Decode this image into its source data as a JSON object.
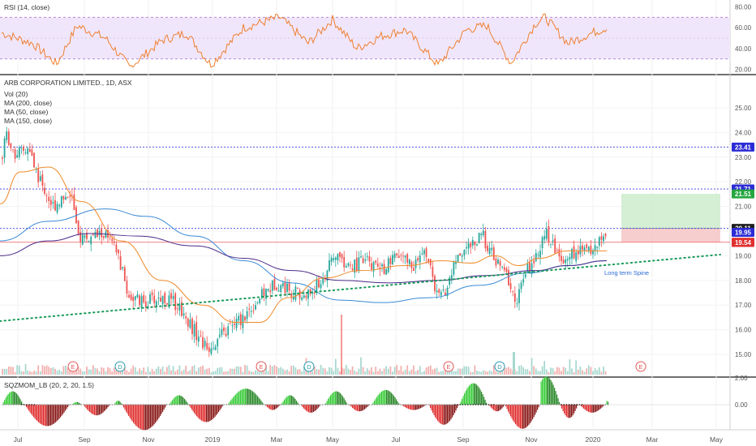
{
  "rsi_panel": {
    "title": "RSI (14, close)",
    "axis_ticks": [
      "80.00",
      "60.00",
      "40.00",
      "20.00"
    ],
    "axis_values": [
      80,
      60,
      40,
      20
    ],
    "band": [
      30,
      70
    ],
    "colors": {
      "line": "#f08030",
      "band": "#f0e6fb",
      "band_edge": "#b48ad8"
    }
  },
  "price_panel": {
    "title": "ARB CORPORATION LIMITED., 1D, ASX",
    "indicators": [
      "Vol (20)",
      "MA (200, close)",
      "MA (50, close)",
      "MA (150, close)"
    ],
    "axis_ticks": [
      "25.00",
      "24.00",
      "23.00",
      "22.00",
      "21.00",
      "20.00",
      "19.00",
      "18.00",
      "17.00",
      "16.00",
      "15.00"
    ],
    "axis_values": [
      25,
      24,
      23,
      22,
      21,
      20,
      19,
      18,
      17,
      16,
      15
    ],
    "level_tags": [
      {
        "text": "23.41",
        "value": 23.41,
        "color": "#2b2bd6"
      },
      {
        "text": "21.71",
        "value": 21.71,
        "color": "#2b2bd6"
      },
      {
        "text": "21.51",
        "value": 21.51,
        "color": "#26a640"
      },
      {
        "text": "20.11",
        "value": 20.11,
        "color": "#1f1f1f"
      },
      {
        "text": "19.95",
        "value": 19.95,
        "color": "#2b2bd6"
      },
      {
        "text": "19.55",
        "value": 19.55,
        "color": "#f05050"
      },
      {
        "text": "19.54",
        "value": 19.54,
        "color": "#e03030"
      }
    ],
    "trendline_label": "Long term Spine",
    "event_badges": [
      {
        "text": "E",
        "kind": "earnings"
      },
      {
        "text": "D",
        "kind": "dividend"
      },
      {
        "text": "E",
        "kind": "earnings"
      },
      {
        "text": "D",
        "kind": "dividend"
      },
      {
        "text": "E",
        "kind": "earnings"
      },
      {
        "text": "D",
        "kind": "dividend"
      },
      {
        "text": "E",
        "kind": "earnings"
      }
    ],
    "colors": {
      "up": "#26a69a",
      "down": "#ef5350",
      "ma200": "#4a2a8a",
      "ma50": "#f08a2a",
      "ma150": "#3a8ad6",
      "trend": "#1a9a5a"
    }
  },
  "momentum_panel": {
    "title": "SQZMOM_LB (20, 2, 20, 1.5)",
    "axis_ticks": [
      "2.00",
      "0.00"
    ],
    "axis_values": [
      2,
      0
    ],
    "colors": {
      "pos_strong": "#3acd3a",
      "pos_weak": "#2a8a2a",
      "neg_strong": "#e03030",
      "neg_weak": "#8a1a1a"
    }
  },
  "time_axis": {
    "labels": [
      "Jul",
      "Sep",
      "Nov",
      "2019",
      "Mar",
      "May",
      "Jul",
      "Sep",
      "Nov",
      "2020",
      "Mar",
      "May"
    ]
  },
  "chart_data": {
    "type": "line",
    "title": "ARB CORPORATION LIMITED., 1D, ASX",
    "x": [
      "2018-07",
      "2018-08",
      "2018-09",
      "2018-10",
      "2018-11",
      "2018-12",
      "2019-01",
      "2019-02",
      "2019-03",
      "2019-04",
      "2019-05",
      "2019-06",
      "2019-07",
      "2019-08",
      "2019-09",
      "2019-10",
      "2019-11",
      "2019-12",
      "2020-01"
    ],
    "series": [
      {
        "values": [
          23.4,
          22.0,
          19.8,
          18.8,
          17.2,
          16.8,
          15.3,
          16.4,
          17.6,
          18.3,
          19.1,
          19.0,
          18.8,
          17.0,
          19.4,
          17.2,
          19.6,
          18.9,
          19.95
        ]
      }
    ],
    "horizontal_levels": [
      23.41,
      21.71,
      20.11,
      19.55
    ],
    "target_zone": [
      20.11,
      21.51
    ],
    "stop_zone": [
      19.54,
      20.11
    ],
    "ylim": [
      14.6,
      25.8
    ]
  }
}
